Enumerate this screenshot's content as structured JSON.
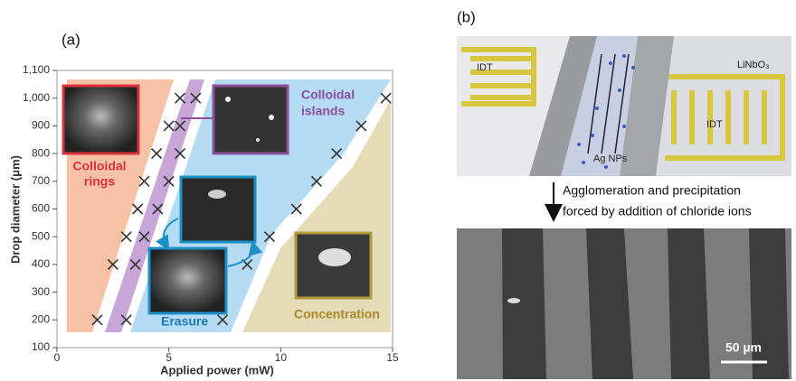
{
  "panel_a": {
    "label": "(a)"
  },
  "chart_data": {
    "type": "scatter",
    "x_label": "Applied power (mW)",
    "y_label": "Drop diameter (μm)",
    "x": [
      1.8,
      2.5,
      3.1,
      3.6,
      3.9,
      3.5,
      3.1,
      4.5,
      4.45,
      3.9,
      5.0,
      5.0,
      5.5,
      5.5,
      6.2,
      5.5,
      7.4,
      8.5,
      9.5,
      10.7,
      11.6,
      12.5,
      13.6,
      14.7
    ],
    "values": [
      200,
      400,
      500,
      600,
      700,
      400,
      200,
      600,
      800,
      500,
      900,
      700,
      800,
      1000,
      1000,
      900,
      200,
      400,
      500,
      600,
      700,
      800,
      900,
      1000
    ],
    "color": "#333333",
    "xlim": [
      0,
      15
    ],
    "ylim": [
      100,
      1100
    ],
    "xticks": [
      0,
      5,
      10,
      15
    ],
    "yticks": [
      100,
      200,
      300,
      400,
      500,
      600,
      700,
      800,
      900,
      {
        "value": 1000,
        "label": "1,000"
      },
      {
        "value": 1100,
        "label": "1,100"
      }
    ],
    "annotations": [
      {
        "lines": [
          "Colloidal",
          "rings"
        ]
      },
      {
        "lines": [
          "Colloidal",
          "islands"
        ]
      },
      {
        "lines": [
          "Erasure"
        ]
      },
      {
        "lines": [
          "Concentration"
        ]
      }
    ]
  },
  "panel_b": {
    "label": "(b)",
    "image_labels": [
      "IDT",
      "LiNbO₃",
      "IDT",
      "Ag NPs"
    ],
    "caption": [
      "Agglomeration and precipitation",
      "forced by addition of chloride ions"
    ],
    "scale_bar": "50 µm"
  }
}
